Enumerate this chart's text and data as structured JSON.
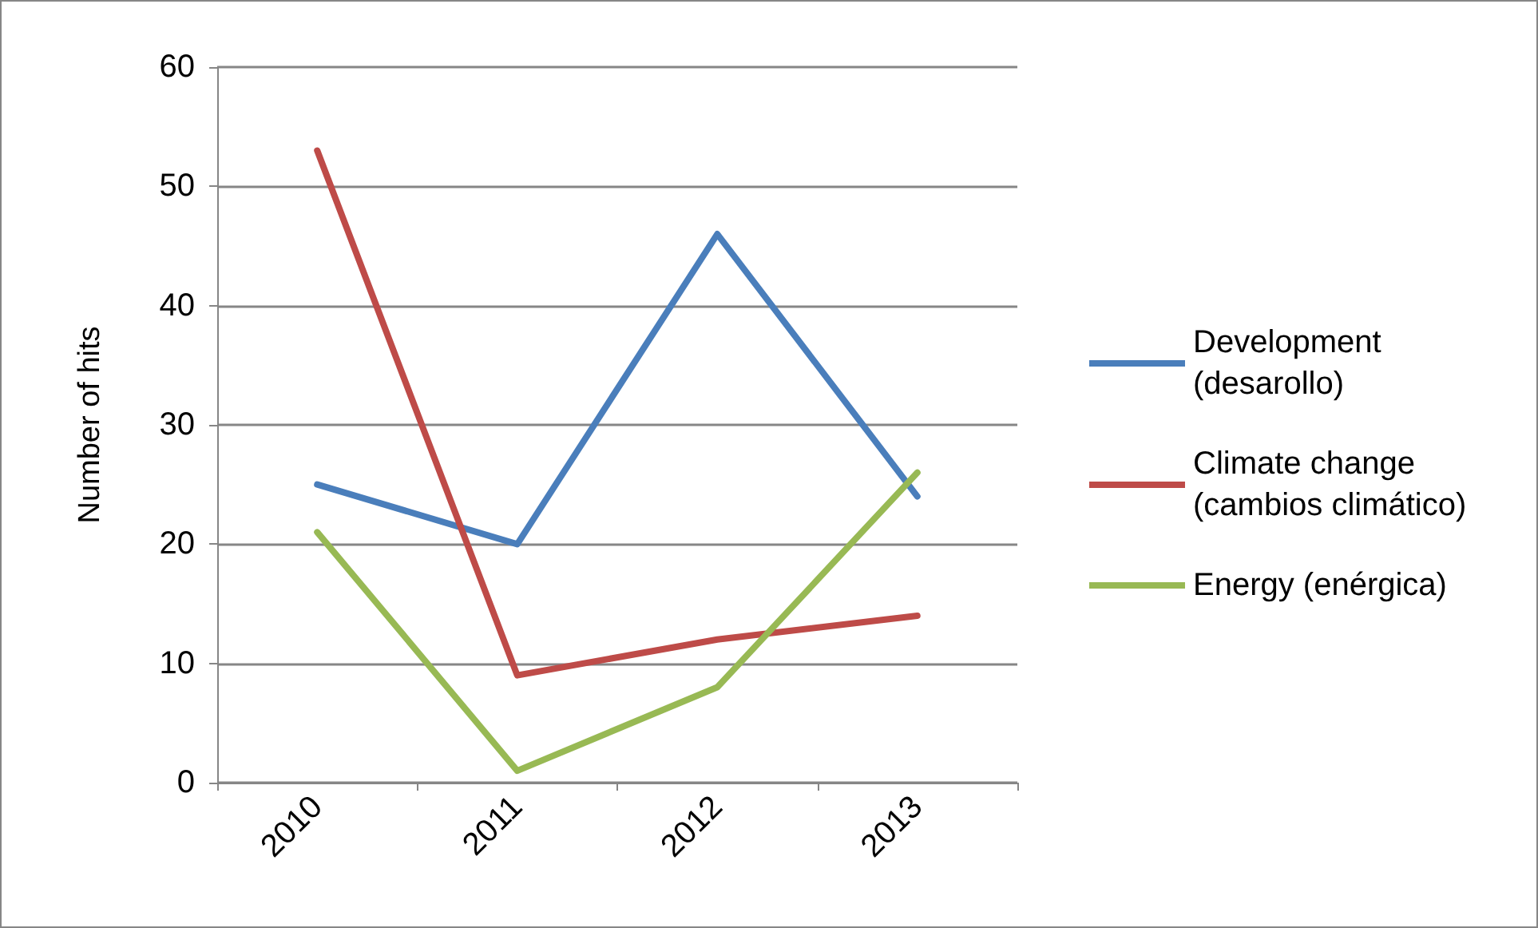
{
  "chart_data": {
    "type": "line",
    "ylabel": "Number of hits",
    "categories": [
      "2010",
      "2011",
      "2012",
      "2013"
    ],
    "series": [
      {
        "name": "Development (desarollo)",
        "color": "#4a7ebb",
        "values": [
          25,
          20,
          46,
          24
        ]
      },
      {
        "name": "Climate change (cambios climático)",
        "color": "#be4b48",
        "values": [
          53,
          9,
          12,
          14
        ]
      },
      {
        "name": "Energy (enérgica)",
        "color": "#98b954",
        "values": [
          21,
          1,
          8,
          26
        ]
      }
    ],
    "ylim": [
      0,
      60
    ],
    "yticks": [
      0,
      10,
      20,
      30,
      40,
      50,
      60
    ],
    "grid": "y",
    "legend": "right",
    "marker": "none",
    "line_style": "solid"
  }
}
